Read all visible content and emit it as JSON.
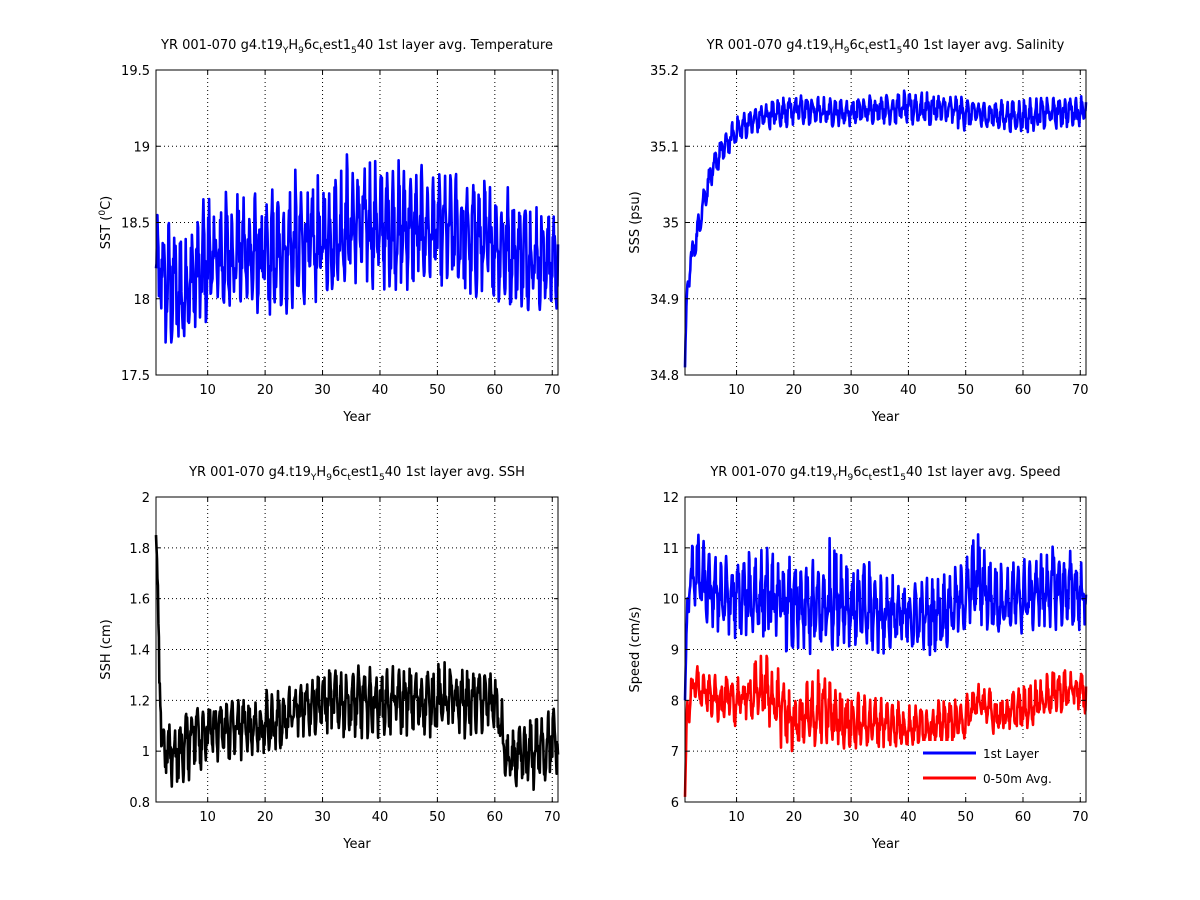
{
  "figure": {
    "panels": [
      {
        "id": "temperature",
        "title_main": "YR 001-070 g4.t19",
        "title_sub1": "Y",
        "title_mid1": "H",
        "title_sub2": "9",
        "title_mid2": "6c",
        "title_sub3": "t",
        "title_mid3": "est1",
        "title_sub4": "5",
        "title_tail": "40 1st layer avg. Temperature",
        "ylabel_main": "SST (",
        "ylabel_sup": "0",
        "ylabel_tail": "C)",
        "xlabel": "Year"
      },
      {
        "id": "salinity",
        "title_main": "YR 001-070 g4.t19",
        "title_sub1": "Y",
        "title_mid1": "H",
        "title_sub2": "9",
        "title_mid2": "6c",
        "title_sub3": "t",
        "title_mid3": "est1",
        "title_sub4": "5",
        "title_tail": "40 1st layer avg. Salinity",
        "ylabel_main": "SSS (psu)",
        "ylabel_sup": "",
        "ylabel_tail": "",
        "xlabel": "Year"
      },
      {
        "id": "ssh",
        "title_main": "YR 001-070 g4.t19",
        "title_sub1": "Y",
        "title_mid1": "H",
        "title_sub2": "9",
        "title_mid2": "6c",
        "title_sub3": "t",
        "title_mid3": "est1",
        "title_sub4": "5",
        "title_tail": "40 1st layer avg. SSH",
        "ylabel_main": "SSH (cm)",
        "ylabel_sup": "",
        "ylabel_tail": "",
        "xlabel": "Year"
      },
      {
        "id": "speed",
        "title_main": "YR 001-070 g4.t19",
        "title_sub1": "Y",
        "title_mid1": "H",
        "title_sub2": "9",
        "title_mid2": "6c",
        "title_sub3": "t",
        "title_mid3": "est1",
        "title_sub4": "5",
        "title_tail": "40 1st layer avg. Speed",
        "ylabel_main": "Speed (cm/s)",
        "ylabel_sup": "",
        "ylabel_tail": "",
        "xlabel": "Year"
      }
    ]
  },
  "chart_data": [
    {
      "type": "line",
      "title": "YR 001-070 g4.t19YH96ctest1540 1st layer avg. Temperature",
      "xlabel": "Year",
      "ylabel": "SST (0C)",
      "xlim": [
        1,
        71
      ],
      "ylim": [
        17.5,
        19.5
      ],
      "xticks": [
        10,
        20,
        30,
        40,
        50,
        60,
        70
      ],
      "yticks": [
        17.5,
        18,
        18.5,
        19,
        19.5
      ],
      "ytick_labels": [
        "17.5",
        "18",
        "18.5",
        "19",
        "19.5"
      ],
      "grid": true,
      "series": [
        {
          "color": "#0000ff",
          "x": [
            1,
            5,
            10,
            15,
            20,
            25,
            30,
            35,
            40,
            45,
            50,
            55,
            60,
            65,
            70,
            71
          ],
          "y": [
            18.2,
            18.0,
            18.2,
            18.3,
            18.25,
            18.3,
            18.35,
            18.45,
            18.45,
            18.45,
            18.45,
            18.4,
            18.35,
            18.3,
            18.25,
            18.2
          ],
          "band_lo": [
            17.65,
            17.6,
            17.8,
            17.9,
            17.85,
            17.9,
            17.95,
            18.1,
            18.05,
            18.05,
            18.05,
            18.0,
            17.95,
            17.9,
            17.85,
            17.95
          ],
          "band_hi": [
            18.55,
            18.55,
            18.75,
            18.75,
            18.7,
            18.85,
            18.85,
            19.0,
            18.95,
            18.9,
            18.85,
            18.85,
            18.8,
            18.7,
            18.7,
            18.6
          ]
        }
      ]
    },
    {
      "type": "line",
      "title": "YR 001-070 g4.t19YH96ctest1540 1st layer avg. Salinity",
      "xlabel": "Year",
      "ylabel": "SSS (psu)",
      "xlim": [
        1,
        71
      ],
      "ylim": [
        34.8,
        35.2
      ],
      "xticks": [
        10,
        20,
        30,
        40,
        50,
        60,
        70
      ],
      "yticks": [
        34.8,
        34.9,
        35.0,
        35.1,
        35.2
      ],
      "ytick_labels": [
        "34.8",
        "34.9",
        "35",
        "35.1",
        "35.2"
      ],
      "grid": true,
      "series": [
        {
          "color": "#0000ff",
          "x": [
            1,
            1.3,
            2,
            3,
            4,
            5,
            6,
            7,
            8,
            9,
            10,
            12,
            15,
            20,
            25,
            30,
            35,
            40,
            45,
            50,
            55,
            60,
            65,
            70,
            71
          ],
          "y": [
            34.81,
            34.9,
            34.95,
            34.98,
            35.02,
            35.05,
            35.07,
            35.09,
            35.1,
            35.11,
            35.12,
            35.13,
            35.14,
            35.15,
            35.145,
            35.145,
            35.15,
            35.15,
            35.15,
            35.145,
            35.14,
            35.14,
            35.145,
            35.145,
            35.15
          ],
          "band_lo": [
            34.81,
            34.88,
            34.93,
            34.96,
            35.0,
            35.03,
            35.05,
            35.07,
            35.08,
            35.09,
            35.1,
            35.11,
            35.12,
            35.125,
            35.125,
            35.125,
            35.13,
            35.125,
            35.125,
            35.12,
            35.12,
            35.115,
            35.12,
            35.125,
            35.13
          ],
          "band_hi": [
            34.82,
            34.92,
            34.97,
            35.0,
            35.04,
            35.07,
            35.09,
            35.11,
            35.12,
            35.13,
            35.14,
            35.15,
            35.16,
            35.17,
            35.165,
            35.165,
            35.17,
            35.175,
            35.17,
            35.165,
            35.16,
            35.165,
            35.165,
            35.17,
            35.17
          ]
        }
      ]
    },
    {
      "type": "line",
      "title": "YR 001-070 g4.t19YH96ctest1540 1st layer avg. SSH",
      "xlabel": "Year",
      "ylabel": "SSH (cm)",
      "xlim": [
        1,
        71
      ],
      "ylim": [
        0.8,
        2.0
      ],
      "xticks": [
        10,
        20,
        30,
        40,
        50,
        60,
        70
      ],
      "yticks": [
        0.8,
        1.0,
        1.2,
        1.4,
        1.6,
        1.8,
        2.0
      ],
      "ytick_labels": [
        "0.8",
        "1",
        "1.2",
        "1.4",
        "1.6",
        "1.8",
        "2"
      ],
      "grid": true,
      "series": [
        {
          "color": "#000000",
          "x": [
            1,
            1.3,
            1.7,
            2,
            3,
            5,
            8,
            10,
            15,
            20,
            25,
            27,
            30,
            35,
            40,
            45,
            50,
            55,
            60,
            61,
            62,
            65,
            70,
            71
          ],
          "y": [
            1.85,
            1.55,
            1.25,
            1.05,
            1.0,
            1.0,
            1.1,
            1.08,
            1.1,
            1.1,
            1.15,
            1.2,
            1.2,
            1.2,
            1.2,
            1.2,
            1.2,
            1.2,
            1.2,
            1.1,
            0.95,
            0.98,
            1.05,
            1.05
          ],
          "band_lo": [
            1.7,
            1.4,
            1.1,
            0.92,
            0.86,
            0.85,
            0.9,
            0.9,
            0.95,
            0.96,
            1.02,
            1.05,
            1.05,
            1.03,
            1.03,
            1.05,
            1.05,
            1.05,
            1.07,
            0.95,
            0.86,
            0.82,
            0.85,
            0.9
          ],
          "band_hi": [
            1.9,
            1.7,
            1.35,
            1.15,
            1.12,
            1.12,
            1.22,
            1.2,
            1.22,
            1.24,
            1.26,
            1.32,
            1.33,
            1.34,
            1.33,
            1.34,
            1.36,
            1.33,
            1.32,
            1.25,
            1.08,
            1.12,
            1.18,
            1.17
          ]
        }
      ]
    },
    {
      "type": "line",
      "title": "YR 001-070 g4.t19YH96ctest1540 1st layer avg. Speed",
      "xlabel": "Year",
      "ylabel": "Speed (cm/s)",
      "xlim": [
        1,
        71
      ],
      "ylim": [
        6,
        12
      ],
      "xticks": [
        10,
        20,
        30,
        40,
        50,
        60,
        70
      ],
      "yticks": [
        6,
        7,
        8,
        9,
        10,
        11,
        12
      ],
      "ytick_labels": [
        "6",
        "7",
        "8",
        "9",
        "10",
        "11",
        "12"
      ],
      "grid": true,
      "legend_position": "lower-right",
      "series": [
        {
          "name": "1st Layer",
          "color": "#0000ff",
          "x": [
            1,
            1.5,
            2,
            3,
            5,
            10,
            15,
            20,
            25,
            27,
            30,
            35,
            40,
            45,
            50,
            52,
            55,
            60,
            65,
            70,
            71
          ],
          "y": [
            8.0,
            10.0,
            10.4,
            10.6,
            10.1,
            10.0,
            10.0,
            9.8,
            9.8,
            10.0,
            9.8,
            9.7,
            9.6,
            9.7,
            10.0,
            10.4,
            9.9,
            10.0,
            10.2,
            10.1,
            10.0
          ],
          "band_lo": [
            7.6,
            9.6,
            9.8,
            9.8,
            9.3,
            9.2,
            9.1,
            8.8,
            8.8,
            9.0,
            9.0,
            8.8,
            8.9,
            8.8,
            9.3,
            9.4,
            9.2,
            9.3,
            9.4,
            9.3,
            9.3
          ],
          "band_hi": [
            8.5,
            10.6,
            11.0,
            11.4,
            11.0,
            10.9,
            11.2,
            10.8,
            10.9,
            11.4,
            10.8,
            10.8,
            10.4,
            10.5,
            10.8,
            11.5,
            10.8,
            10.8,
            11.1,
            10.9,
            10.4
          ]
        },
        {
          "name": "0-50m Avg.",
          "color": "#ff0000",
          "x": [
            1,
            1.3,
            2,
            3,
            5,
            10,
            15,
            18,
            20,
            25,
            30,
            35,
            40,
            45,
            50,
            52,
            55,
            60,
            65,
            70,
            71
          ],
          "y": [
            6.1,
            7.6,
            8.2,
            8.3,
            8.1,
            8.0,
            8.2,
            7.8,
            7.5,
            7.7,
            7.5,
            7.6,
            7.4,
            7.5,
            7.6,
            8.0,
            7.7,
            7.8,
            8.1,
            8.2,
            8.1
          ],
          "band_lo": [
            6.05,
            7.0,
            7.8,
            7.8,
            7.6,
            7.4,
            7.6,
            7.0,
            6.9,
            7.1,
            7.0,
            7.0,
            7.1,
            7.1,
            7.2,
            7.5,
            7.3,
            7.4,
            7.7,
            7.8,
            7.6
          ],
          "band_hi": [
            6.2,
            8.0,
            8.6,
            8.8,
            8.5,
            8.5,
            9.0,
            8.6,
            8.3,
            8.8,
            8.2,
            8.1,
            8.0,
            8.0,
            8.1,
            8.5,
            8.2,
            8.3,
            8.7,
            8.6,
            8.6
          ]
        }
      ]
    }
  ]
}
